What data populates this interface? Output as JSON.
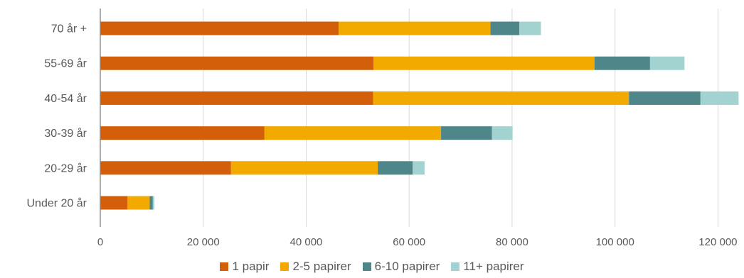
{
  "chart_data": {
    "type": "bar",
    "orientation": "horizontal",
    "stacked": true,
    "categories": [
      "70 år +",
      "55-69 år",
      "40-54 år",
      "30-39 år",
      "20-29 år",
      "Under 20 år"
    ],
    "series": [
      {
        "name": "1 papir",
        "color": "#D35F0A",
        "values": [
          46300,
          53100,
          53000,
          31900,
          25400,
          5300
        ]
      },
      {
        "name": "2-5 papirer",
        "color": "#F2A900",
        "values": [
          29500,
          42900,
          49700,
          34300,
          28500,
          4300
        ]
      },
      {
        "name": "6-10 papirer",
        "color": "#4E8689",
        "values": [
          5600,
          10800,
          13900,
          9900,
          6800,
          600
        ]
      },
      {
        "name": "11+ papirer",
        "color": "#A3D3D0",
        "values": [
          4200,
          6700,
          7400,
          4000,
          2300,
          300
        ]
      }
    ],
    "xlim": [
      0,
      125000
    ],
    "xticks": [
      0,
      20000,
      40000,
      60000,
      80000,
      100000,
      120000
    ],
    "xtick_labels": [
      "0",
      "20 000",
      "40 000",
      "60 000",
      "80 000",
      "100 000",
      "120 000"
    ],
    "grid": "vertical",
    "legend_position": "bottom"
  }
}
